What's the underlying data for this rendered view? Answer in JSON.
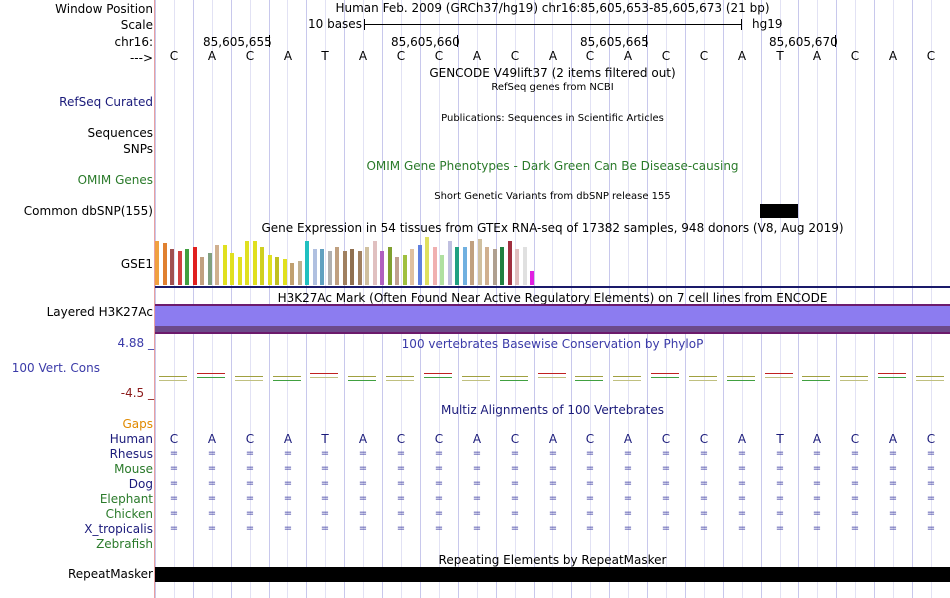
{
  "header": {
    "window_position_label": "Window Position",
    "window_position": "Human Feb. 2009 (GRCh37/hg19)   chr16:85,605,653-85,605,673 (21 bp)",
    "scale_label": "Scale",
    "scale_text": "10 bases",
    "scale_assembly": "hg19",
    "chrom_label": "chr16:",
    "positions": [
      "85,605,655",
      "85,605,660",
      "85,605,665",
      "85,605,670"
    ],
    "strand_label": "--->"
  },
  "sequence": [
    "C",
    "A",
    "C",
    "A",
    "T",
    "A",
    "C",
    "C",
    "A",
    "C",
    "A",
    "C",
    "A",
    "C",
    "C",
    "A",
    "T",
    "A",
    "C",
    "A",
    "C"
  ],
  "tracks": {
    "gencode_title": "GENCODE V49lift37 (2 items filtered out)",
    "refseq_title": "RefSeq genes from NCBI",
    "refseq_label": "RefSeq Curated",
    "publications_title": "Publications: Sequences in Scientific Articles",
    "sequences_label": "Sequences",
    "snps_label": "SNPs",
    "omim_title": "OMIM Gene Phenotypes - Dark Green Can Be Disease-causing",
    "omim_label": "OMIM Genes",
    "dbsnp_title": "Short Genetic Variants from dbSNP release 155",
    "dbsnp_label": "Common dbSNP(155)",
    "gtex_title": "Gene Expression in 54 tissues from GTEx RNA-seq of 17382 samples, 948 donors (V8, Aug 2019)",
    "gtex_label": "GSE1",
    "h3k27_title": "H3K27Ac Mark (Often Found Near Active Regulatory Elements) on 7 cell lines from ENCODE",
    "h3k27_label": "Layered H3K27Ac",
    "phylop_title": "100 vertebrates Basewise Conservation by PhyloP",
    "phylop_label": "100 Vert. Cons",
    "phylop_max": "4.88 _",
    "phylop_min": "-4.5 _",
    "multiz_title": "Multiz Alignments of 100 Vertebrates",
    "gaps_label": "Gaps",
    "repeat_title": "Repeating Elements by RepeatMasker",
    "repeat_label": "RepeatMasker"
  },
  "species": [
    {
      "name": "Human",
      "color": "#1a1a7a"
    },
    {
      "name": "Rhesus",
      "color": "#1a1a7a"
    },
    {
      "name": "Mouse",
      "color": "#2a7a2a"
    },
    {
      "name": "Dog",
      "color": "#1a1a7a"
    },
    {
      "name": "Elephant",
      "color": "#2a7a2a"
    },
    {
      "name": "Chicken",
      "color": "#2a7a2a"
    },
    {
      "name": "X_tropicalis",
      "color": "#1a1a7a"
    },
    {
      "name": "Zebrafish",
      "color": "#2a7a2a"
    }
  ],
  "alignment_symbol": "=",
  "gtex_values": [
    44,
    42,
    36,
    34,
    36,
    38,
    28,
    32,
    40,
    40,
    32,
    28,
    44,
    44,
    38,
    30,
    28,
    26,
    22,
    24,
    44,
    36,
    36,
    34,
    38,
    34,
    36,
    34,
    38,
    44,
    34,
    38,
    28,
    30,
    36,
    40,
    48,
    38,
    30,
    44,
    38,
    38,
    44,
    46,
    38,
    36,
    38,
    44,
    36,
    38,
    14
  ],
  "gtex_colors": [
    "#f0a040",
    "#e08030",
    "#a05050",
    "#d04040",
    "#40a040",
    "#e02020",
    "#c0a080",
    "#80a080",
    "#d0b090",
    "#e0e020",
    "#e0e020",
    "#e0e020",
    "#e0e020",
    "#e0e020",
    "#d0d020",
    "#e0e020",
    "#c0c020",
    "#e0e020",
    "#c0a070",
    "#c0b090",
    "#20c0c0",
    "#b0c0e0",
    "#60a0c0",
    "#b0b0b0",
    "#c0a080",
    "#a08060",
    "#907050",
    "#a08060",
    "#d0c0a0",
    "#e0c0c0",
    "#b060c0",
    "#80a030",
    "#c0a090",
    "#a0c040",
    "#e0c0a0",
    "#6080e0",
    "#e0e060",
    "#f0b0b0",
    "#b0e0a0",
    "#c0c0e0",
    "#20a080",
    "#70b0e0",
    "#c0a080",
    "#d0c0a0",
    "#d0b090",
    "#b0a090",
    "#208040",
    "#a03040",
    "#e0c0c0",
    "#e0e0e0",
    "#e020e0"
  ],
  "colors": {
    "label_blue": "#1a1a7a",
    "label_green": "#2a7a2a",
    "gaps_orange": "#e08a00",
    "phylop_blue": "#3a3aa8",
    "phylop_red": "#8b1a1a",
    "h3k27_fill": "#8c7cf0",
    "h3k27_border": "#6c1a6c",
    "track_border": "#1a1a6a"
  }
}
